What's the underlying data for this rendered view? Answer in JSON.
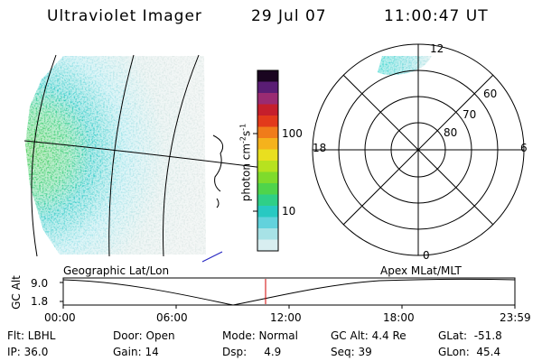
{
  "header": {
    "instrument": "Ultraviolet Imager",
    "date": "29 Jul 07",
    "time": "11:00:47 UT"
  },
  "colorbar": {
    "unit_label": "photon cm",
    "unit_exp1": "-2",
    "unit_mid": "s",
    "unit_exp2": "-1",
    "ticks": [
      "100",
      "10"
    ],
    "colors": [
      "#1a0520",
      "#5a1d74",
      "#9a2b72",
      "#c51f2c",
      "#e23a1b",
      "#f07c1a",
      "#f5b21c",
      "#e9df1f",
      "#b7e21f",
      "#7fdb2c",
      "#4fd44b",
      "#2fcf87",
      "#28c9c2",
      "#62d2dc",
      "#a7e2e6",
      "#d8eef0"
    ]
  },
  "polar": {
    "mlt_labels": {
      "top": "12",
      "left": "18",
      "right": "6",
      "bottom": "0"
    },
    "lat_labels": [
      "60",
      "70",
      "80"
    ]
  },
  "timeline": {
    "left_title": "Geographic Lat/Lon",
    "right_title": "Apex MLat/MLT",
    "axis_name": "GC Alt",
    "ymax": "9.0",
    "ymin": "1.8",
    "ticks": [
      "00:00",
      "06:00",
      "12:00",
      "18:00",
      "23:59"
    ],
    "current_time_color": "#d00000"
  },
  "status": {
    "flt": "Flt: LBHL",
    "ip": "IP: 36.0",
    "door": "Door: Open",
    "gain": "Gain: 14",
    "mode": "Mode: Normal",
    "dsp": "Dsp:     4.9",
    "gcalt": "GC Alt: 4.4 Re",
    "seq": "Seq: 39",
    "glat": "GLat:  -51.8",
    "glon": "GLon:  45.4"
  }
}
